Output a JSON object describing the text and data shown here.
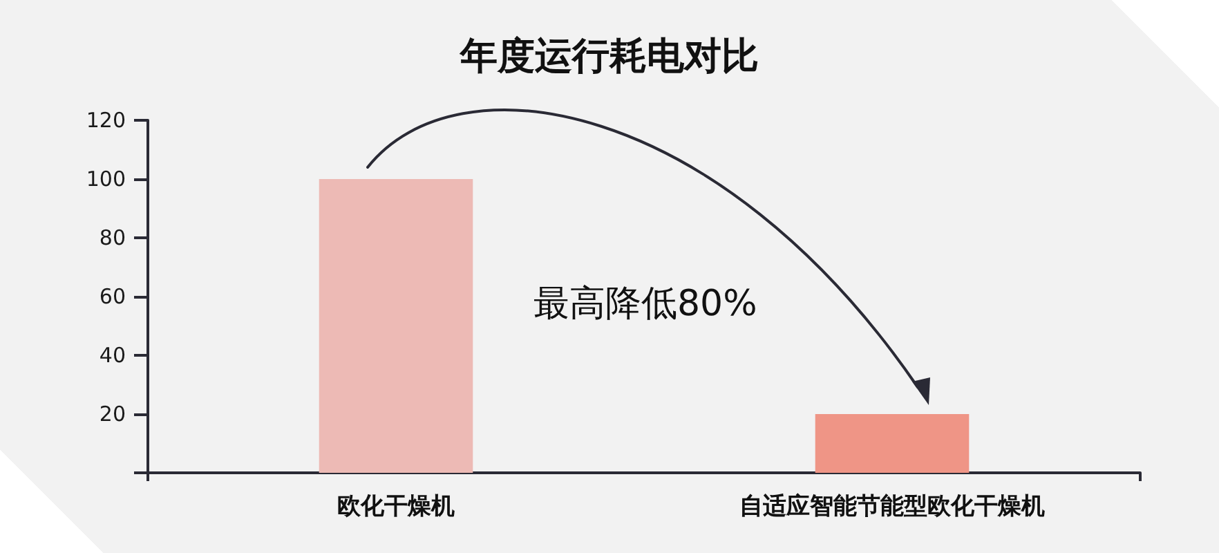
{
  "chart_data": {
    "type": "bar",
    "title": "年度运行耗电对比",
    "categories": [
      "欧化干燥机",
      "自适应智能节能型欧化干燥机"
    ],
    "values": [
      100,
      20
    ],
    "colors": [
      "#edbab5",
      "#ef9586"
    ],
    "ylim": [
      0,
      120
    ],
    "yticks": [
      {
        "value": 0,
        "label": null
      },
      20,
      40,
      60,
      80,
      100,
      120
    ],
    "annotations": [
      "最高降低80%"
    ]
  }
}
